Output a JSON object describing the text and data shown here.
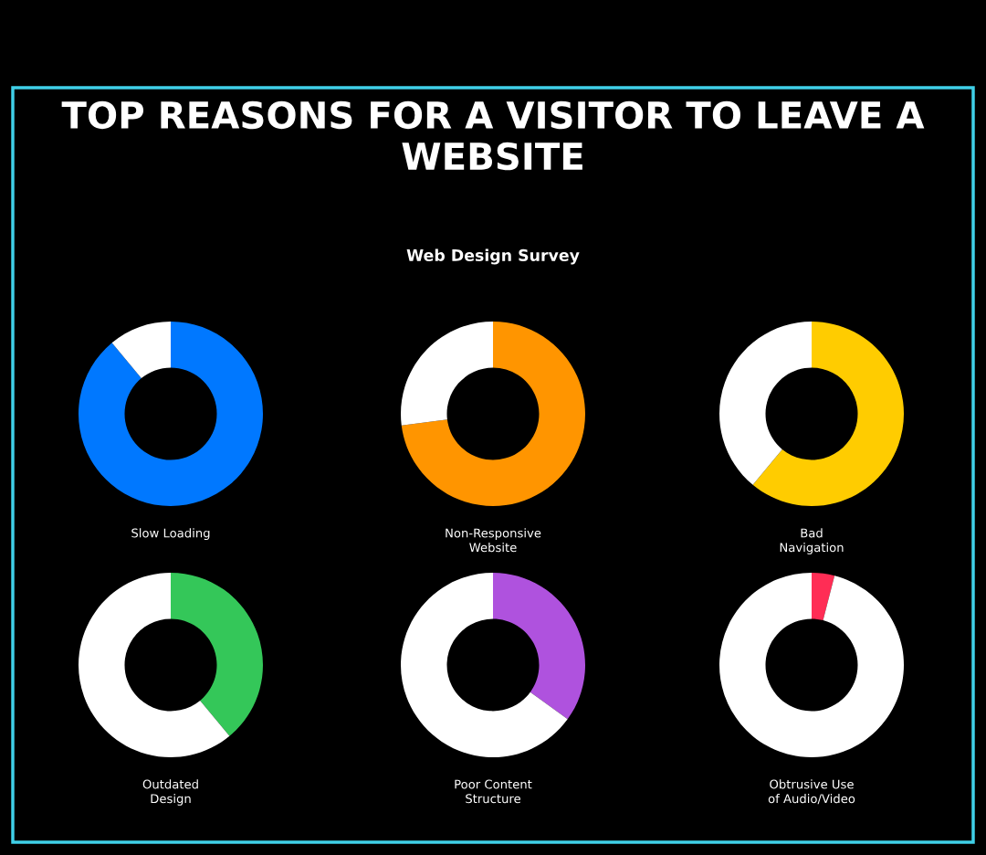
{
  "chart_data": [
    {
      "type": "other",
      "title": "TOP REASONS FOR A VISITOR TO LEAVE A WEBSITE",
      "subtitle": "Web Design Survey"
    },
    {
      "type": "donut",
      "title": "Slow Loading",
      "categories": [
        null,
        null
      ],
      "values": [
        89,
        11
      ],
      "colors": [
        "#0078ff",
        "#ffffff"
      ]
    },
    {
      "type": "donut",
      "title": "Non-Responsive\nWebsite",
      "categories": [
        null,
        null
      ],
      "values": [
        73,
        27
      ],
      "colors": [
        "#ff9500",
        "#ffffff"
      ]
    },
    {
      "type": "donut",
      "title": "Bad\nNavigation",
      "categories": [
        null,
        null
      ],
      "values": [
        61,
        39
      ],
      "colors": [
        "#ffcc00",
        "#ffffff"
      ]
    },
    {
      "type": "donut",
      "title": "Outdated\nDesign",
      "categories": [
        null,
        null
      ],
      "values": [
        39,
        61
      ],
      "colors": [
        "#34c759",
        "#ffffff"
      ]
    },
    {
      "type": "donut",
      "title": "Poor Content\nStructure",
      "categories": [
        null,
        null
      ],
      "values": [
        35,
        65
      ],
      "colors": [
        "#af52de",
        "#ffffff"
      ]
    },
    {
      "type": "donut",
      "title": "Obtrusive Use\nof Audio/Video",
      "categories": [
        null,
        null
      ],
      "values": [
        4,
        96
      ],
      "colors": [
        "#ff2d55",
        "#ffffff"
      ]
    }
  ]
}
